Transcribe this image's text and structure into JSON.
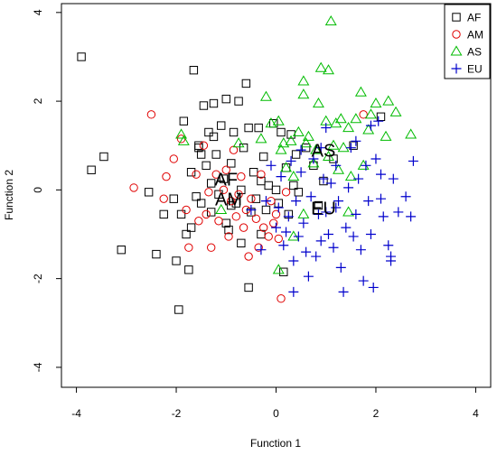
{
  "chart_data": {
    "type": "scatter",
    "title": "",
    "xlabel": "Function 1",
    "ylabel": "Function 2",
    "xlim": [
      -4.3,
      4.3
    ],
    "ylim": [
      -4.45,
      4.2
    ],
    "xticks": [
      -4,
      -2,
      0,
      2,
      4
    ],
    "yticks": [
      -4,
      -2,
      0,
      2,
      4
    ],
    "xtick_labels": [
      "-4",
      "-2",
      "0",
      "2",
      "4"
    ],
    "ytick_labels": [
      "-4",
      "-2",
      "0",
      "2",
      "4"
    ],
    "grid": false,
    "legend": {
      "position": "top-right",
      "entries": [
        {
          "label": "AF",
          "marker": "square",
          "color": "#000000"
        },
        {
          "label": "AM",
          "marker": "circle",
          "color": "#e00000"
        },
        {
          "label": "AS",
          "marker": "triangle",
          "color": "#00bb00"
        },
        {
          "label": "EU",
          "marker": "plus",
          "color": "#0000cc"
        }
      ]
    },
    "series": [
      {
        "name": "AF",
        "marker": "square",
        "color": "#000000",
        "points": [
          [
            -3.9,
            3.0
          ],
          [
            -3.7,
            0.45
          ],
          [
            -3.45,
            0.75
          ],
          [
            -3.1,
            -1.35
          ],
          [
            -2.55,
            -0.05
          ],
          [
            -2.4,
            -1.45
          ],
          [
            -2.25,
            -0.55
          ],
          [
            -2.05,
            -0.2
          ],
          [
            -2.0,
            -1.6
          ],
          [
            -1.95,
            -2.7
          ],
          [
            -1.9,
            -0.55
          ],
          [
            -1.85,
            1.55
          ],
          [
            -1.8,
            -1.0
          ],
          [
            -1.75,
            -1.8
          ],
          [
            -1.7,
            -0.85
          ],
          [
            -1.7,
            0.4
          ],
          [
            -1.65,
            2.7
          ],
          [
            -1.6,
            -0.15
          ],
          [
            -1.55,
            1.0
          ],
          [
            -1.5,
            0.8
          ],
          [
            -1.5,
            -0.3
          ],
          [
            -1.45,
            1.9
          ],
          [
            -1.4,
            0.55
          ],
          [
            -1.35,
            1.3
          ],
          [
            -1.3,
            -0.5
          ],
          [
            -1.3,
            0.15
          ],
          [
            -1.25,
            1.2
          ],
          [
            -1.2,
            0.8
          ],
          [
            -1.15,
            -0.1
          ],
          [
            -1.1,
            1.45
          ],
          [
            -1.05,
            0.25
          ],
          [
            -1.0,
            2.05
          ],
          [
            -1.0,
            -0.75
          ],
          [
            -0.95,
            -0.9
          ],
          [
            -0.9,
            0.6
          ],
          [
            -0.85,
            1.3
          ],
          [
            -0.8,
            -0.3
          ],
          [
            -0.75,
            2.0
          ],
          [
            -0.7,
            0.0
          ],
          [
            -0.7,
            -1.2
          ],
          [
            -0.65,
            0.95
          ],
          [
            -0.6,
            2.4
          ],
          [
            -0.55,
            1.4
          ],
          [
            -0.5,
            -0.5
          ],
          [
            -0.45,
            0.4
          ],
          [
            -0.4,
            -0.2
          ],
          [
            -0.35,
            1.4
          ],
          [
            -0.3,
            0.2
          ],
          [
            -0.3,
            -1.0
          ],
          [
            -0.25,
            0.75
          ],
          [
            -0.2,
            -0.45
          ],
          [
            -0.15,
            0.1
          ],
          [
            -0.05,
            1.5
          ],
          [
            0.0,
            0.0
          ],
          [
            0.05,
            -0.3
          ],
          [
            0.1,
            1.3
          ],
          [
            0.15,
            -1.85
          ],
          [
            0.2,
            0.5
          ],
          [
            0.25,
            -0.55
          ],
          [
            0.3,
            1.25
          ],
          [
            0.35,
            0.1
          ],
          [
            0.4,
            0.8
          ],
          [
            0.45,
            -0.05
          ],
          [
            0.6,
            0.95
          ],
          [
            0.75,
            0.55
          ],
          [
            0.85,
            -0.35
          ],
          [
            0.95,
            0.2
          ],
          [
            1.15,
            0.7
          ],
          [
            1.55,
            1.0
          ],
          [
            2.1,
            1.65
          ],
          [
            -0.55,
            -2.2
          ],
          [
            -1.25,
            1.95
          ],
          [
            -1.55,
            0.95
          ],
          [
            -0.9,
            -0.35
          ]
        ]
      },
      {
        "name": "AM",
        "marker": "circle",
        "color": "#e00000",
        "points": [
          [
            -2.85,
            0.05
          ],
          [
            -2.5,
            1.7
          ],
          [
            -2.25,
            -0.2
          ],
          [
            -2.2,
            0.3
          ],
          [
            -2.05,
            0.7
          ],
          [
            -1.9,
            1.15
          ],
          [
            -1.8,
            -0.45
          ],
          [
            -1.75,
            -1.3
          ],
          [
            -1.6,
            0.35
          ],
          [
            -1.55,
            -0.7
          ],
          [
            -1.45,
            1.0
          ],
          [
            -1.4,
            -0.55
          ],
          [
            -1.35,
            -0.05
          ],
          [
            -1.3,
            -1.3
          ],
          [
            -1.2,
            0.35
          ],
          [
            -1.15,
            -0.7
          ],
          [
            -1.05,
            0.0
          ],
          [
            -1.0,
            0.45
          ],
          [
            -0.95,
            -1.05
          ],
          [
            -0.9,
            -0.25
          ],
          [
            -0.85,
            0.9
          ],
          [
            -0.8,
            -0.6
          ],
          [
            -0.75,
            -0.1
          ],
          [
            -0.7,
            0.3
          ],
          [
            -0.65,
            -0.85
          ],
          [
            -0.6,
            -0.45
          ],
          [
            -0.55,
            -1.5
          ],
          [
            -0.5,
            -0.2
          ],
          [
            -0.4,
            -0.65
          ],
          [
            -0.35,
            -1.3
          ],
          [
            -0.3,
            0.35
          ],
          [
            -0.25,
            -0.85
          ],
          [
            -0.15,
            -1.05
          ],
          [
            -0.1,
            -0.25
          ],
          [
            -0.05,
            -0.75
          ],
          [
            0.0,
            -0.55
          ],
          [
            0.05,
            -1.1
          ],
          [
            0.1,
            -2.45
          ],
          [
            0.2,
            -0.05
          ],
          [
            1.75,
            1.7
          ]
        ]
      },
      {
        "name": "AS",
        "marker": "triangle",
        "color": "#00bb00",
        "points": [
          [
            -1.9,
            1.25
          ],
          [
            -1.85,
            1.1
          ],
          [
            -0.75,
            1.05
          ],
          [
            -0.3,
            1.15
          ],
          [
            -0.2,
            2.1
          ],
          [
            -0.1,
            1.5
          ],
          [
            0.05,
            1.55
          ],
          [
            0.1,
            0.9
          ],
          [
            0.15,
            1.05
          ],
          [
            0.2,
            0.5
          ],
          [
            0.3,
            1.1
          ],
          [
            0.35,
            0.3
          ],
          [
            0.45,
            1.3
          ],
          [
            0.55,
            2.15
          ],
          [
            0.55,
            2.45
          ],
          [
            0.6,
            1.05
          ],
          [
            0.65,
            1.2
          ],
          [
            0.75,
            0.6
          ],
          [
            0.8,
            0.9
          ],
          [
            0.85,
            1.95
          ],
          [
            0.9,
            2.75
          ],
          [
            1.0,
            1.55
          ],
          [
            1.05,
            0.75
          ],
          [
            1.05,
            2.7
          ],
          [
            1.1,
            3.8
          ],
          [
            1.15,
            1.0
          ],
          [
            1.2,
            1.5
          ],
          [
            1.25,
            0.45
          ],
          [
            1.3,
            1.6
          ],
          [
            1.35,
            0.95
          ],
          [
            1.45,
            1.4
          ],
          [
            1.5,
            0.3
          ],
          [
            1.6,
            1.6
          ],
          [
            1.7,
            2.2
          ],
          [
            1.75,
            0.55
          ],
          [
            1.85,
            1.35
          ],
          [
            1.9,
            1.7
          ],
          [
            2.0,
            1.95
          ],
          [
            2.2,
            1.2
          ],
          [
            2.25,
            2.0
          ],
          [
            2.4,
            1.75
          ],
          [
            2.7,
            1.25
          ],
          [
            -1.1,
            -0.45
          ],
          [
            0.35,
            -1.05
          ],
          [
            0.55,
            -0.55
          ],
          [
            1.45,
            -0.5
          ],
          [
            0.05,
            -1.8
          ]
        ]
      },
      {
        "name": "EU",
        "marker": "plus",
        "color": "#0000cc",
        "points": [
          [
            -0.5,
            -0.45
          ],
          [
            -0.3,
            -1.35
          ],
          [
            -0.2,
            -0.25
          ],
          [
            -0.1,
            0.55
          ],
          [
            0.0,
            -0.85
          ],
          [
            0.05,
            -0.4
          ],
          [
            0.1,
            0.3
          ],
          [
            0.15,
            -1.25
          ],
          [
            0.2,
            -0.95
          ],
          [
            0.25,
            -0.6
          ],
          [
            0.3,
            0.65
          ],
          [
            0.35,
            -1.6
          ],
          [
            0.35,
            -2.3
          ],
          [
            0.4,
            -0.25
          ],
          [
            0.45,
            -1.05
          ],
          [
            0.5,
            0.4
          ],
          [
            0.5,
            0.9
          ],
          [
            0.55,
            -0.75
          ],
          [
            0.6,
            -1.4
          ],
          [
            0.65,
            -1.95
          ],
          [
            0.7,
            -0.15
          ],
          [
            0.75,
            0.7
          ],
          [
            0.8,
            -1.5
          ],
          [
            0.85,
            -0.55
          ],
          [
            0.9,
            -1.15
          ],
          [
            0.95,
            0.25
          ],
          [
            1.0,
            -0.5
          ],
          [
            1.05,
            -1.0
          ],
          [
            1.1,
            0.15
          ],
          [
            1.15,
            -1.3
          ],
          [
            1.2,
            0.55
          ],
          [
            1.25,
            -0.25
          ],
          [
            1.3,
            -1.75
          ],
          [
            1.35,
            -2.3
          ],
          [
            1.4,
            -0.85
          ],
          [
            1.45,
            0.05
          ],
          [
            1.5,
            0.95
          ],
          [
            1.55,
            -1.05
          ],
          [
            1.6,
            -0.55
          ],
          [
            1.65,
            0.25
          ],
          [
            1.7,
            -1.35
          ],
          [
            1.75,
            -2.05
          ],
          [
            1.8,
            0.55
          ],
          [
            1.85,
            -0.25
          ],
          [
            1.9,
            -1.0
          ],
          [
            1.95,
            -2.2
          ],
          [
            2.0,
            0.7
          ],
          [
            2.05,
            1.55
          ],
          [
            2.1,
            0.35
          ],
          [
            2.15,
            -0.6
          ],
          [
            2.25,
            -1.25
          ],
          [
            2.3,
            -1.6
          ],
          [
            2.35,
            0.25
          ],
          [
            2.45,
            -0.5
          ],
          [
            2.6,
            -0.15
          ],
          [
            2.7,
            -0.6
          ],
          [
            2.75,
            0.65
          ],
          [
            1.0,
            1.4
          ],
          [
            1.6,
            1.1
          ],
          [
            1.9,
            1.45
          ],
          [
            2.3,
            -1.5
          ],
          [
            1.2,
            -0.4
          ],
          [
            0.9,
            0.95
          ],
          [
            2.1,
            -0.2
          ]
        ]
      }
    ],
    "annotations": [
      {
        "text": "AF",
        "x": -1.0,
        "y": 0.1
      },
      {
        "text": "AM",
        "x": -0.95,
        "y": -0.35
      },
      {
        "text": "AS",
        "x": 0.95,
        "y": 0.75
      },
      {
        "text": "EU",
        "x": 0.95,
        "y": -0.55
      }
    ]
  }
}
